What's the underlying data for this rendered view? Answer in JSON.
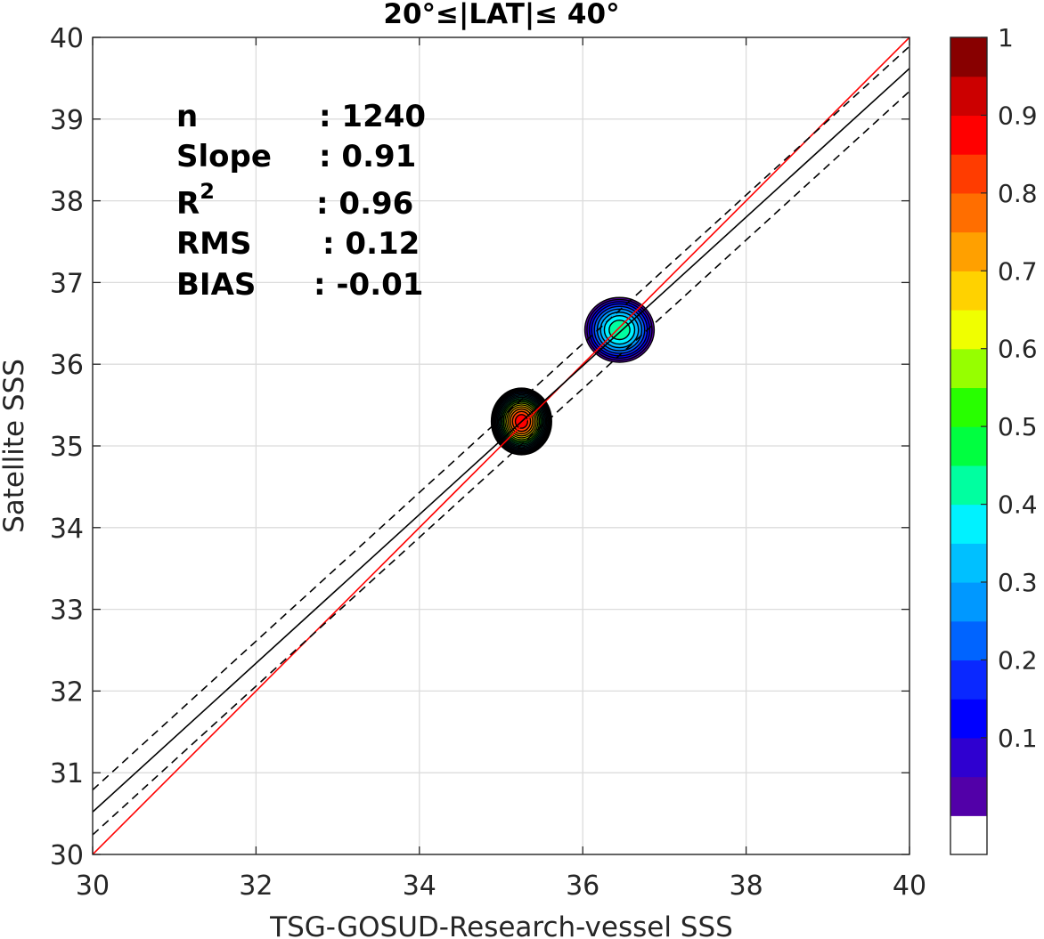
{
  "chart_data": {
    "type": "contour",
    "title": "20°≤|LAT|≤ 40°",
    "xlabel": "TSG-GOSUD-Research-vessel SSS",
    "ylabel": "Satellite SSS",
    "xlim": [
      30,
      40
    ],
    "ylim": [
      30,
      40
    ],
    "xticks": [
      "30",
      "32",
      "34",
      "36",
      "38",
      "40"
    ],
    "yticks": [
      "30",
      "31",
      "32",
      "33",
      "34",
      "35",
      "36",
      "37",
      "38",
      "39",
      "40"
    ],
    "grid": true,
    "stats": [
      {
        "name": "n",
        "value": ": 1240"
      },
      {
        "name": "Slope",
        "value": ": 0.91"
      },
      {
        "name": "R",
        "sup": "2",
        "value": ": 0.96"
      },
      {
        "name": "RMS",
        "value": ": 0.12"
      },
      {
        "name": "BIAS",
        "value": ": -0.01"
      }
    ],
    "lines": [
      {
        "role": "one-to-one",
        "color": "#ff0000",
        "style": "solid",
        "points": [
          [
            30,
            30
          ],
          [
            40,
            40
          ]
        ]
      },
      {
        "role": "regression",
        "color": "#000000",
        "style": "solid",
        "points": [
          [
            30,
            30.52
          ],
          [
            40,
            39.62
          ]
        ]
      },
      {
        "role": "regression-upper",
        "color": "#000000",
        "style": "dashed",
        "points": [
          [
            30,
            30.79
          ],
          [
            40,
            39.89
          ]
        ]
      },
      {
        "role": "regression-lower",
        "color": "#000000",
        "style": "dashed",
        "points": [
          [
            30,
            30.24
          ],
          [
            40,
            39.34
          ]
        ]
      }
    ],
    "density_clusters": [
      {
        "center": [
          35.25,
          35.3
        ],
        "peak": 0.95,
        "rx": 0.38,
        "ry": 0.42
      },
      {
        "center": [
          36.45,
          36.42
        ],
        "peak": 0.5,
        "rx": 0.45,
        "ry": 0.42
      }
    ],
    "colorbar": {
      "ticks": [
        "0.1",
        "0.2",
        "0.3",
        "0.4",
        "0.5",
        "0.6",
        "0.7",
        "0.8",
        "0.9",
        "1"
      ],
      "levels": [
        0.05,
        0.1,
        0.15,
        0.2,
        0.25,
        0.3,
        0.35,
        0.4,
        0.45,
        0.5,
        0.55,
        0.6,
        0.65,
        0.7,
        0.75,
        0.8,
        0.85,
        0.9,
        0.95,
        1.0
      ],
      "colors": [
        "#ffffff",
        "#5200a8",
        "#2f00d0",
        "#0000ff",
        "#0a28ff",
        "#0064ff",
        "#0098ff",
        "#00c0ff",
        "#00f2ff",
        "#00ffa0",
        "#00ff40",
        "#28ff00",
        "#96ff00",
        "#f0ff00",
        "#ffd200",
        "#ffa000",
        "#ff6e00",
        "#ff3c00",
        "#ff0000",
        "#cc0000",
        "#880000"
      ]
    }
  }
}
